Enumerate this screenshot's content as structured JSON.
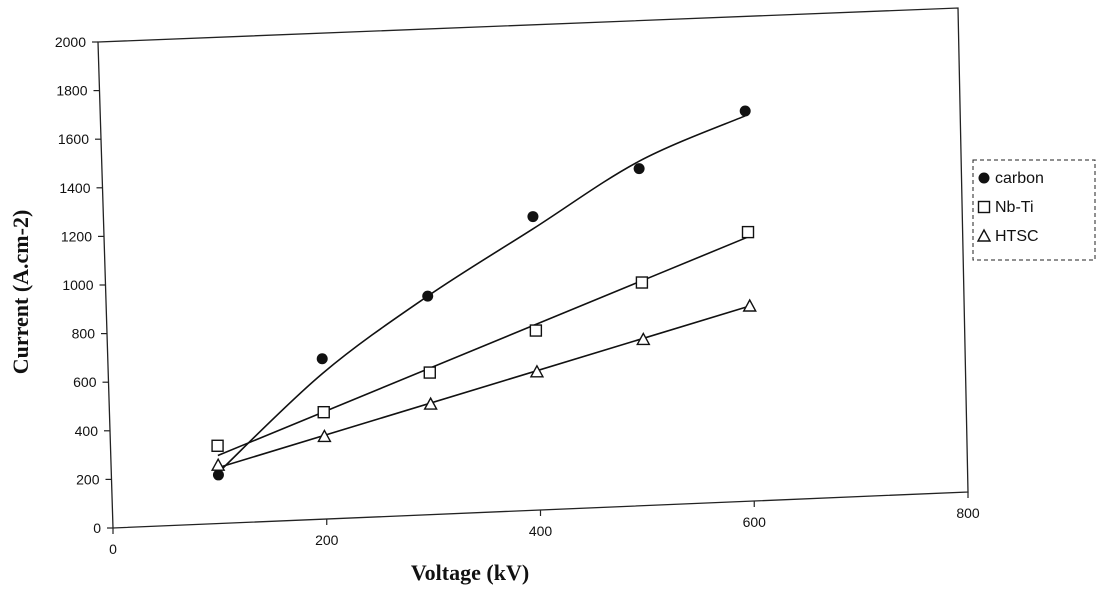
{
  "chart_data": {
    "type": "scatter",
    "title": "",
    "xlabel": "Voltage  (kV)",
    "ylabel": "Current (A.cm-2)",
    "xlim": [
      0,
      800
    ],
    "ylim": [
      0,
      2000
    ],
    "xticks": [
      0,
      200,
      400,
      600,
      800
    ],
    "yticks": [
      0,
      200,
      400,
      600,
      800,
      1000,
      1200,
      1400,
      1600,
      1800,
      2000
    ],
    "grid": false,
    "legend_position": "right",
    "series": [
      {
        "name": "carbon",
        "marker": "filled-circle",
        "x": [
          100,
          200,
          300,
          400,
          500,
          600
        ],
        "y": [
          200,
          660,
          900,
          1210,
          1390,
          1610
        ],
        "fit": [
          [
            100,
            210
          ],
          [
            200,
            600
          ],
          [
            300,
            900
          ],
          [
            400,
            1160
          ],
          [
            500,
            1420
          ],
          [
            600,
            1590
          ]
        ]
      },
      {
        "name": "Nb-Ti",
        "marker": "open-square",
        "x": [
          100,
          200,
          300,
          400,
          500,
          600
        ],
        "y": [
          320,
          440,
          585,
          740,
          920,
          1110
        ],
        "fit": [
          [
            100,
            280
          ],
          [
            600,
            1090
          ]
        ]
      },
      {
        "name": "HTSC",
        "marker": "open-triangle",
        "x": [
          100,
          200,
          300,
          400,
          500,
          600
        ],
        "y": [
          240,
          340,
          455,
          570,
          685,
          805
        ],
        "fit": [
          [
            100,
            230
          ],
          [
            600,
            805
          ]
        ]
      }
    ]
  }
}
